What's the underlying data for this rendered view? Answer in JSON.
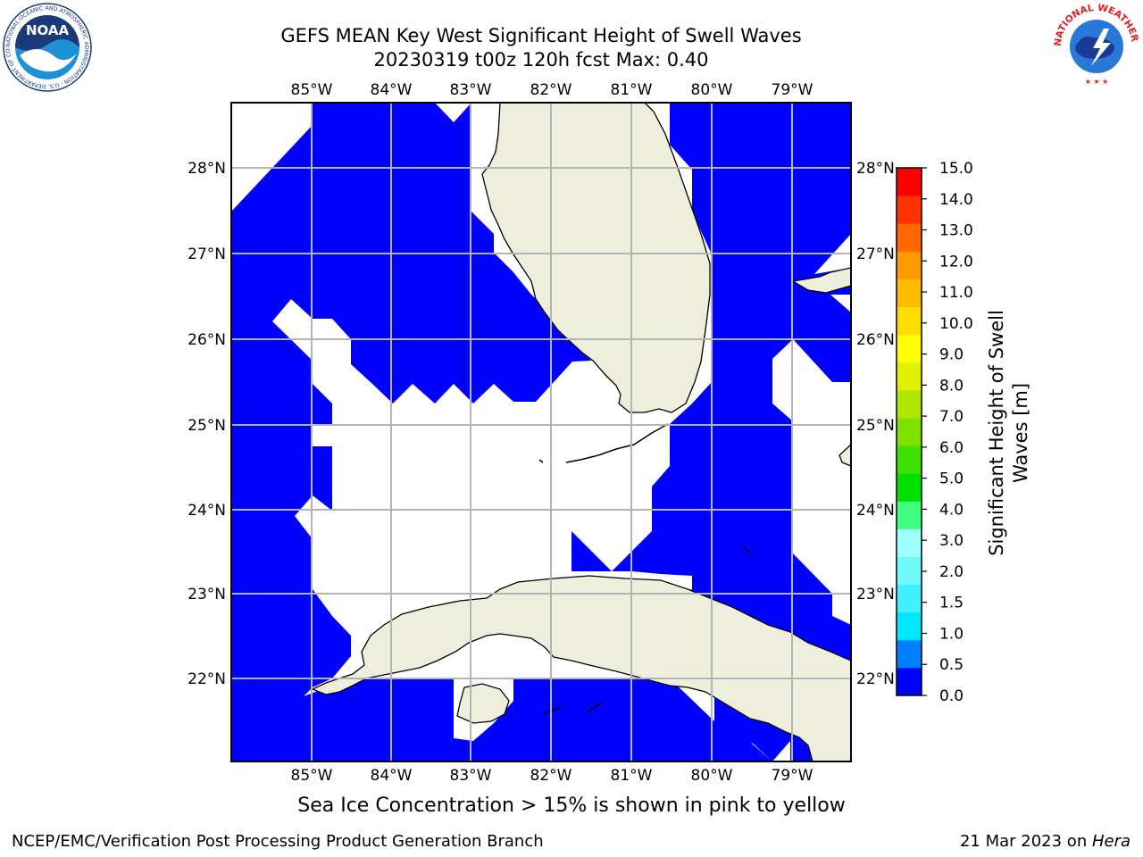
{
  "header": {
    "title_line1": "GEFS MEAN Key West Significant Height of Swell Waves",
    "title_line2": "20230319 t00z 120h fcst   Max: 0.40"
  },
  "logos": {
    "left": {
      "name": "noaa-logo",
      "text": "NOAA",
      "ring_text": "NATIONAL OCEANIC AND ATMOSPHERIC ADMINISTRATION · U.S. DEPARTMENT OF COMMERCE"
    },
    "right": {
      "name": "nws-logo",
      "ring_text": "NATIONAL WEATHER SERVICE"
    }
  },
  "map": {
    "lon_labels": [
      "85°W",
      "84°W",
      "83°W",
      "82°W",
      "81°W",
      "80°W",
      "79°W"
    ],
    "lat_labels": [
      "28°N",
      "27°N",
      "26°N",
      "25°N",
      "24°N",
      "23°N",
      "22°N"
    ],
    "colors": {
      "ocean_low": "#0000ff",
      "land": "#eeeedc",
      "grid": "#b4b4b4",
      "no_data": "#ffffff"
    }
  },
  "colorbar": {
    "label_line1": "Significant Height of Swell",
    "label_line2": "Waves [m]",
    "ticks": [
      "0.0",
      "0.5",
      "1.0",
      "1.5",
      "2.0",
      "3.0",
      "4.0",
      "5.0",
      "6.0",
      "7.0",
      "8.0",
      "9.0",
      "10.0",
      "11.0",
      "12.0",
      "13.0",
      "14.0",
      "15.0"
    ],
    "colors": [
      "#0000ff",
      "#0080ff",
      "#00e6ff",
      "#40f0ff",
      "#70fafa",
      "#a0ffff",
      "#40ff80",
      "#00e000",
      "#40e000",
      "#80e000",
      "#b0e600",
      "#e0f000",
      "#ffff00",
      "#ffdd00",
      "#ffbb00",
      "#ff9900",
      "#ff6600",
      "#ff3300",
      "#ff0000"
    ]
  },
  "footer": {
    "note": "Sea Ice Concentration > 15% is shown in pink to yellow",
    "left": "NCEP/EMC/Verification Post Processing Product Generation Branch",
    "right_date": "21 Mar 2023 on ",
    "right_host": "Hera"
  }
}
